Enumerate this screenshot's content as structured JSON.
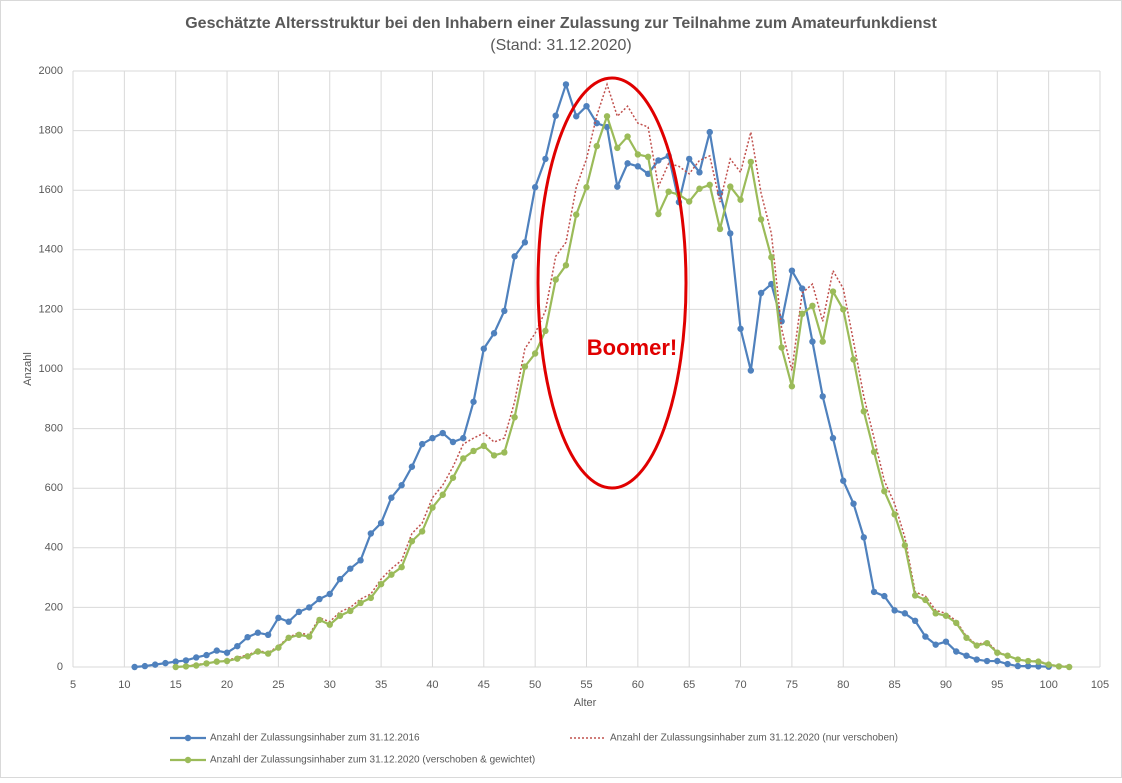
{
  "chart_data": {
    "type": "line",
    "title": "Geschätzte Altersstruktur bei den Inhabern einer Zulassung zur Teilnahme zum Amateurfunkdienst",
    "subtitle": "(Stand: 31.12.2020)",
    "xlabel": "Alter",
    "ylabel": "Anzahl",
    "annotation": "Boomer!",
    "xlim": [
      5,
      105
    ],
    "xticks": [
      5,
      10,
      15,
      20,
      25,
      30,
      35,
      40,
      45,
      50,
      55,
      60,
      65,
      70,
      75,
      80,
      85,
      90,
      95,
      100,
      105
    ],
    "ylim": [
      0,
      2000
    ],
    "yticks": [
      0,
      200,
      400,
      600,
      800,
      1000,
      1200,
      1400,
      1600,
      1800,
      2000
    ],
    "grid": true,
    "legend": "bottom",
    "series": [
      {
        "name": "Anzahl der Zulassungsinhaber zum 31.12.2016",
        "color": "#4f81bd",
        "markers": true,
        "dashed": false,
        "x": [
          11,
          12,
          13,
          14,
          15,
          16,
          17,
          18,
          19,
          20,
          21,
          22,
          23,
          24,
          25,
          26,
          27,
          28,
          29,
          30,
          31,
          32,
          33,
          34,
          35,
          36,
          37,
          38,
          39,
          40,
          41,
          42,
          43,
          44,
          45,
          46,
          47,
          48,
          49,
          50,
          51,
          52,
          53,
          54,
          55,
          56,
          57,
          58,
          59,
          60,
          61,
          62,
          63,
          64,
          65,
          66,
          67,
          68,
          69,
          70,
          71,
          72,
          73,
          74,
          75,
          76,
          77,
          78,
          79,
          80,
          81,
          82,
          83,
          84,
          85,
          86,
          87,
          88,
          89,
          90,
          91,
          92,
          93,
          94,
          95,
          96,
          97,
          98,
          99,
          100
        ],
        "values": [
          0,
          3,
          8,
          13,
          18,
          22,
          32,
          40,
          55,
          48,
          70,
          100,
          115,
          108,
          165,
          152,
          185,
          200,
          228,
          245,
          295,
          330,
          358,
          448,
          483,
          568,
          610,
          672,
          748,
          768,
          785,
          755,
          768,
          890,
          1068,
          1120,
          1195,
          1378,
          1425,
          1610,
          1705,
          1850,
          1955,
          1848,
          1882,
          1825,
          1812,
          1612,
          1690,
          1680,
          1655,
          1700,
          1715,
          1560,
          1705,
          1660,
          1795,
          1590,
          1455,
          1135,
          995,
          1255,
          1285,
          1160,
          1330,
          1270,
          1092,
          908,
          768,
          625,
          548,
          435,
          252,
          238,
          190,
          180,
          155,
          102,
          75,
          85,
          52,
          38,
          25,
          20,
          20,
          10,
          3,
          3,
          2,
          1
        ]
      },
      {
        "name": "Anzahl der Zulassungsinhaber zum 31.12.2020 (nur verschoben)",
        "color": "#c0504d",
        "markers": false,
        "dashed": true,
        "x": [
          15,
          16,
          17,
          18,
          19,
          20,
          21,
          22,
          23,
          24,
          25,
          26,
          27,
          28,
          29,
          30,
          31,
          32,
          33,
          34,
          35,
          36,
          37,
          38,
          39,
          40,
          41,
          42,
          43,
          44,
          45,
          46,
          47,
          48,
          49,
          50,
          51,
          52,
          53,
          54,
          55,
          56,
          57,
          58,
          59,
          60,
          61,
          62,
          63,
          64,
          65,
          66,
          67,
          68,
          69,
          70,
          71,
          72,
          73,
          74,
          75,
          76,
          77,
          78,
          79,
          80,
          81,
          82,
          83,
          84,
          85,
          86,
          87,
          88,
          89,
          90,
          91,
          92,
          93,
          94,
          95,
          96,
          97,
          98,
          99,
          100,
          101,
          102
        ],
        "values": [
          0,
          3,
          8,
          13,
          18,
          22,
          32,
          40,
          55,
          48,
          70,
          100,
          115,
          108,
          165,
          152,
          185,
          200,
          228,
          245,
          295,
          330,
          358,
          448,
          483,
          568,
          610,
          672,
          748,
          768,
          785,
          755,
          768,
          890,
          1068,
          1120,
          1195,
          1378,
          1425,
          1610,
          1705,
          1850,
          1955,
          1848,
          1882,
          1825,
          1812,
          1612,
          1690,
          1680,
          1655,
          1700,
          1715,
          1560,
          1705,
          1660,
          1795,
          1590,
          1455,
          1135,
          995,
          1255,
          1285,
          1160,
          1330,
          1270,
          1092,
          908,
          768,
          625,
          548,
          435,
          252,
          238,
          190,
          180,
          155,
          102,
          75,
          85,
          52,
          38,
          25,
          20,
          20,
          10,
          3,
          3
        ]
      },
      {
        "name": "Anzahl der Zulassungsinhaber zum 31.12.2020 (verschoben & gewichtet)",
        "color": "#9bbb59",
        "markers": true,
        "dashed": false,
        "x": [
          15,
          16,
          17,
          18,
          19,
          20,
          21,
          22,
          23,
          24,
          25,
          26,
          27,
          28,
          29,
          30,
          31,
          32,
          33,
          34,
          35,
          36,
          37,
          38,
          39,
          40,
          41,
          42,
          43,
          44,
          45,
          46,
          47,
          48,
          49,
          50,
          51,
          52,
          53,
          54,
          55,
          56,
          57,
          58,
          59,
          60,
          61,
          62,
          63,
          64,
          65,
          66,
          67,
          68,
          69,
          70,
          71,
          72,
          73,
          74,
          75,
          76,
          77,
          78,
          79,
          80,
          81,
          82,
          83,
          84,
          85,
          86,
          87,
          88,
          89,
          90,
          91,
          92,
          93,
          94,
          95,
          96,
          97,
          98,
          99,
          100,
          101,
          102
        ],
        "values": [
          0,
          2,
          5,
          12,
          18,
          20,
          28,
          36,
          52,
          45,
          65,
          98,
          108,
          102,
          158,
          142,
          172,
          188,
          215,
          232,
          278,
          310,
          335,
          422,
          455,
          535,
          578,
          635,
          700,
          725,
          742,
          710,
          720,
          838,
          1008,
          1052,
          1128,
          1300,
          1348,
          1518,
          1610,
          1748,
          1848,
          1742,
          1780,
          1720,
          1712,
          1520,
          1595,
          1585,
          1562,
          1605,
          1618,
          1470,
          1612,
          1568,
          1695,
          1502,
          1375,
          1072,
          942,
          1185,
          1212,
          1092,
          1260,
          1200,
          1032,
          858,
          722,
          590,
          512,
          408,
          240,
          225,
          180,
          172,
          148,
          98,
          72,
          80,
          48,
          38,
          25,
          20,
          18,
          8,
          2,
          0
        ]
      }
    ]
  }
}
